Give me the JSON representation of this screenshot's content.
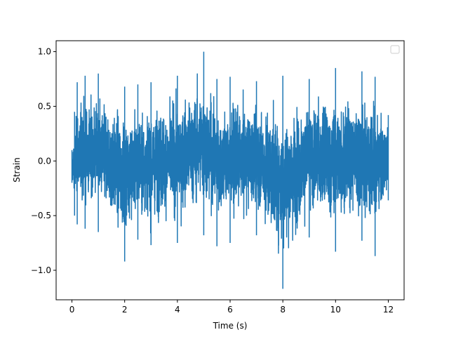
{
  "chart_data": {
    "type": "line",
    "title": "",
    "xlabel": "Time (s)",
    "ylabel": "Strain",
    "xlim": [
      -0.6,
      12.6
    ],
    "ylim": [
      -1.27,
      1.1
    ],
    "xticks": [
      0,
      2,
      4,
      6,
      8,
      10,
      12
    ],
    "xtick_labels": [
      "0",
      "2",
      "4",
      "6",
      "8",
      "10",
      "12"
    ],
    "yticks": [
      -1.0,
      -0.5,
      0.0,
      0.5,
      1.0
    ],
    "ytick_labels": [
      "−1.0",
      "−0.5",
      "0.0",
      "0.5",
      "1.0"
    ],
    "grid": false,
    "legend": {
      "location": "upper right",
      "entries": []
    },
    "series": [
      {
        "color": "#1f77b4",
        "x_start": 0,
        "x_end": 12,
        "envelope": {
          "x": [
            0.0,
            0.1,
            0.2,
            0.5,
            1.0,
            2.0,
            2.5,
            3.0,
            4.0,
            5.0,
            5.5,
            6.0,
            7.0,
            8.0,
            9.0,
            10.0,
            11.0,
            11.5,
            12.0
          ],
          "upper": [
            0.1,
            0.45,
            0.72,
            0.78,
            0.8,
            0.68,
            0.7,
            0.72,
            0.78,
            1.0,
            0.75,
            0.77,
            0.73,
            0.78,
            0.75,
            0.85,
            0.82,
            0.77,
            0.42
          ],
          "lower": [
            -0.2,
            -0.5,
            -0.58,
            -0.62,
            -0.65,
            -0.92,
            -0.72,
            -0.77,
            -0.75,
            -0.68,
            -0.78,
            -0.75,
            -0.68,
            -1.17,
            -0.7,
            -0.83,
            -0.73,
            -0.87,
            -0.36
          ]
        }
      }
    ]
  }
}
